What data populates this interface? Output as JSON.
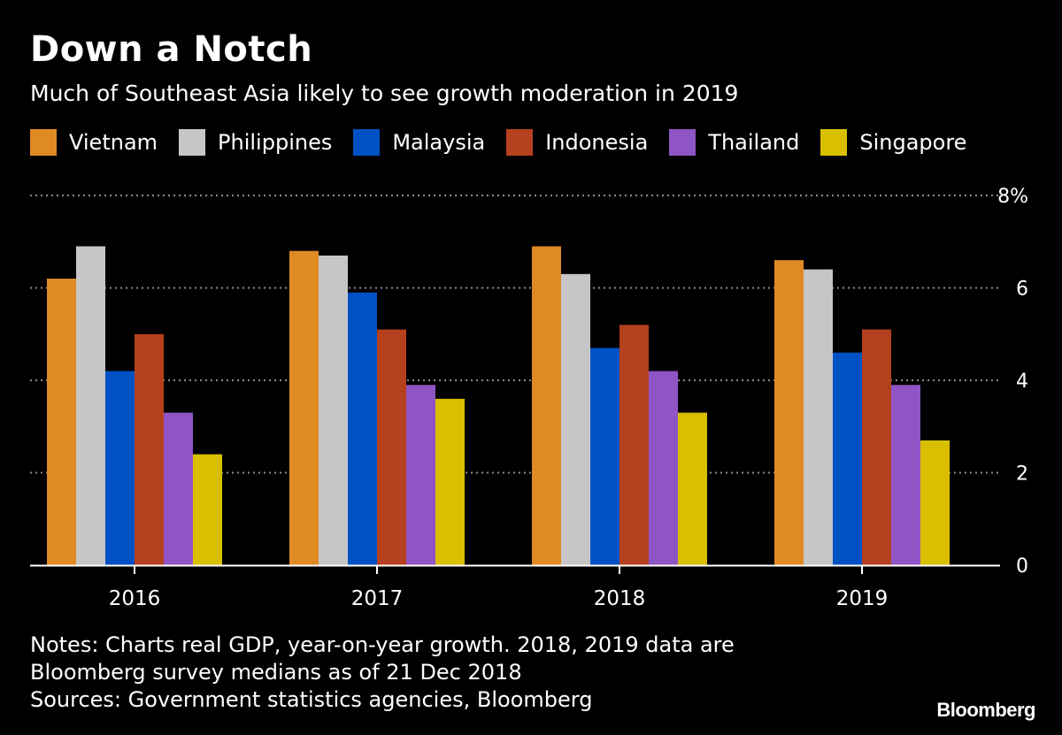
{
  "header": {
    "title": "Down a Notch",
    "subtitle": "Much of Southeast Asia likely to see growth moderation in 2019"
  },
  "chart_data": {
    "type": "bar",
    "categories": [
      "2016",
      "2017",
      "2018",
      "2019"
    ],
    "series": [
      {
        "name": "Vietnam",
        "color": "#e08a24",
        "values": [
          6.2,
          6.8,
          6.9,
          6.6
        ]
      },
      {
        "name": "Philippines",
        "color": "#c6c6c6",
        "values": [
          6.9,
          6.7,
          6.3,
          6.4
        ]
      },
      {
        "name": "Malaysia",
        "color": "#0052c4",
        "values": [
          4.2,
          5.9,
          4.7,
          4.6
        ]
      },
      {
        "name": "Indonesia",
        "color": "#b5401e",
        "values": [
          5.0,
          5.1,
          5.2,
          5.1
        ]
      },
      {
        "name": "Thailand",
        "color": "#9055c4",
        "values": [
          3.3,
          3.9,
          4.2,
          3.9
        ]
      },
      {
        "name": "Singapore",
        "color": "#d9bf00",
        "values": [
          2.4,
          3.6,
          3.3,
          2.7
        ]
      }
    ],
    "ylim": [
      0,
      8
    ],
    "yticks": [
      {
        "value": 0,
        "label": "0"
      },
      {
        "value": 2,
        "label": "2"
      },
      {
        "value": 4,
        "label": "4"
      },
      {
        "value": 6,
        "label": "6"
      },
      {
        "value": 8,
        "label": "8%"
      }
    ],
    "grid": true,
    "legend_position": "top"
  },
  "footer": {
    "notes_line1": "Notes: Charts real GDP, year-on-year growth. 2018, 2019 data are",
    "notes_line2": "Bloomberg survey medians as of 21 Dec 2018",
    "sources": "Sources: Government statistics agencies, Bloomberg",
    "brand": "Bloomberg"
  }
}
